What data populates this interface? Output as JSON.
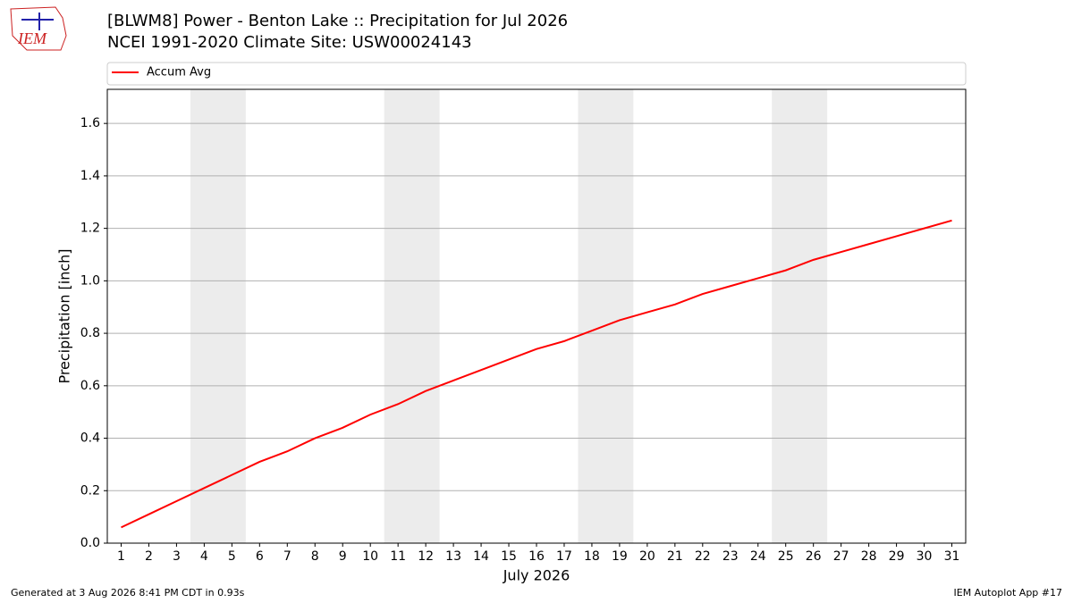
{
  "chart_data": {
    "type": "line",
    "title": "[BLWM8] Power - Benton Lake :: Precipitation for Jul 2026",
    "subtitle": "NCEI 1991-2020 Climate Site: USW00024143",
    "x_label": "July 2026",
    "y_label": "Precipitation [inch]",
    "x": [
      1,
      2,
      3,
      4,
      5,
      6,
      7,
      8,
      9,
      10,
      11,
      12,
      13,
      14,
      15,
      16,
      17,
      18,
      19,
      20,
      21,
      22,
      23,
      24,
      25,
      26,
      27,
      28,
      29,
      30,
      31
    ],
    "series": [
      {
        "name": "Accum Avg",
        "color": "#ff0000",
        "values": [
          0.06,
          0.11,
          0.16,
          0.21,
          0.26,
          0.31,
          0.35,
          0.4,
          0.44,
          0.49,
          0.53,
          0.58,
          0.62,
          0.66,
          0.7,
          0.74,
          0.77,
          0.81,
          0.85,
          0.88,
          0.91,
          0.95,
          0.98,
          1.01,
          1.04,
          1.08,
          1.11,
          1.14,
          1.17,
          1.2,
          1.23
        ]
      }
    ],
    "xlim": [
      0.5,
      31.5
    ],
    "ylim": [
      0,
      1.73
    ],
    "xticks": [
      1,
      2,
      3,
      4,
      5,
      6,
      7,
      8,
      9,
      10,
      11,
      12,
      13,
      14,
      15,
      16,
      17,
      18,
      19,
      20,
      21,
      22,
      23,
      24,
      25,
      26,
      27,
      28,
      29,
      30,
      31
    ],
    "yticks": [
      {
        "value": 0,
        "label": "0.0"
      },
      0.2,
      0.4,
      0.6,
      0.8,
      {
        "value": 1,
        "label": "1.0"
      },
      1.2,
      1.4,
      1.6
    ],
    "shaded_spans": [
      [
        3.5,
        5.5
      ],
      [
        10.5,
        12.5
      ],
      [
        17.5,
        19.5
      ],
      [
        24.5,
        26.5
      ]
    ],
    "shade_color": "#ececec",
    "grid": "y",
    "legend": "top"
  },
  "footer": {
    "left": "Generated at 3 Aug 2026 8:41 PM CDT in 0.93s",
    "right": "IEM Autoplot App #17"
  },
  "logo": {
    "text": "IEM"
  }
}
